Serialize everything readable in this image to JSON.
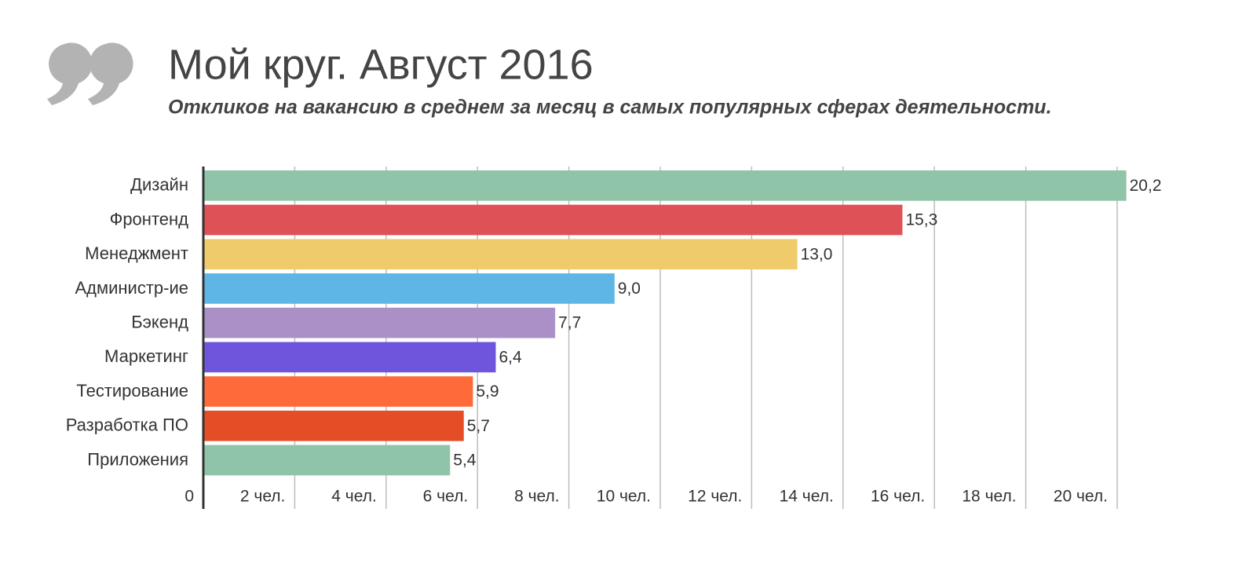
{
  "chart_data": {
    "type": "bar",
    "orientation": "horizontal",
    "title": "Мой круг. Август 2016",
    "subtitle": "Откликов на вакансию в среднем за месяц в самых популярных сферах деятельности.",
    "categories": [
      "Дизайн",
      "Фронтенд",
      "Менеджмент",
      "Администр-ие",
      "Бэкенд",
      "Маркетинг",
      "Тестирование",
      "Разработка ПО",
      "Приложения"
    ],
    "values": [
      20.2,
      15.3,
      13.0,
      9.0,
      7.7,
      6.4,
      5.9,
      5.7,
      5.4
    ],
    "value_labels": [
      "20,2",
      "15,3",
      "13,0",
      "9,0",
      "7,7",
      "6,4",
      "5,9",
      "5,7",
      "5,4"
    ],
    "colors": [
      "#8fc4a8",
      "#de5257",
      "#efcb6b",
      "#5db6e5",
      "#ab90c8",
      "#6e55dc",
      "#ff6a3a",
      "#e44d25",
      "#8fc4a8"
    ],
    "xlim": [
      0,
      20
    ],
    "xticks": [
      0,
      {
        "value": 2,
        "label": "2 чел."
      },
      {
        "value": 4,
        "label": "4 чел."
      },
      {
        "value": 6,
        "label": "6 чел."
      },
      {
        "value": 8,
        "label": "8 чел."
      },
      {
        "value": 10,
        "label": "10 чел."
      },
      {
        "value": 12,
        "label": "12 чел."
      },
      {
        "value": 14,
        "label": "14 чел."
      },
      {
        "value": 16,
        "label": "16 чел."
      },
      {
        "value": 18,
        "label": "18 чел."
      },
      {
        "value": 20,
        "label": "20 чел."
      }
    ],
    "grid": true
  }
}
